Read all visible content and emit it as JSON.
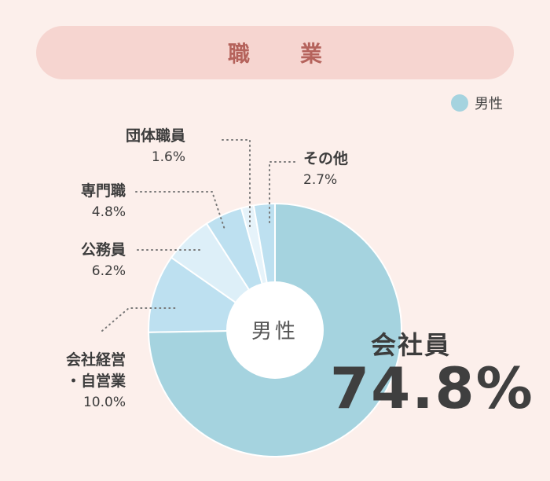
{
  "title": "職　業",
  "legend": {
    "label": "男性",
    "color": "#a5d3df"
  },
  "center_label": "男性",
  "chart_data": {
    "type": "pie",
    "title": "職　業",
    "categories": [
      "会社員",
      "会社経営・自営業",
      "公務員",
      "専門職",
      "団体職員",
      "その他"
    ],
    "series": [
      {
        "name": "男性",
        "values": [
          74.8,
          10.0,
          6.2,
          4.8,
          1.6,
          2.7
        ]
      }
    ],
    "colors": [
      "#a5d3df",
      "#bde0f0",
      "#ddeff8",
      "#bde0f0",
      "#e6f3fa",
      "#bde0f0"
    ],
    "labels": {
      "main_name": "会社員",
      "main_pct": "74.8%",
      "keiei_1": "会社経営",
      "keiei_2": "・自営業",
      "keiei_pct": "10.0%",
      "koumuin": "公務員",
      "koumuin_pct": "6.2%",
      "senmon": "専門職",
      "senmon_pct": "4.8%",
      "dantai": "団体職員",
      "dantai_pct": "1.6%",
      "sonota": "その他",
      "sonota_pct": "2.7%"
    }
  }
}
